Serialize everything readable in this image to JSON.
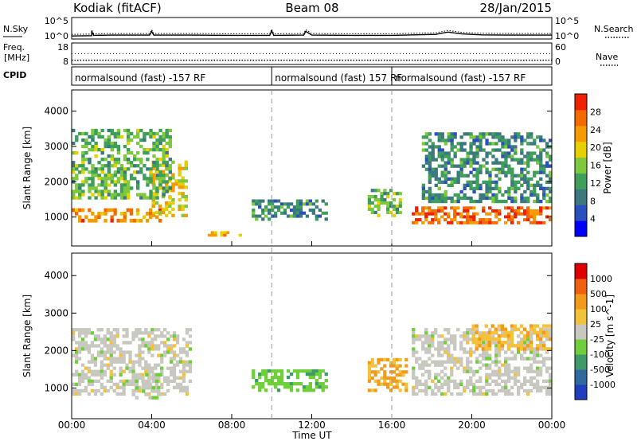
{
  "header": {
    "station": "Kodiak (fitACF)",
    "beam": "Beam 08",
    "date": "28/Jan/2015"
  },
  "noise_panel": {
    "left_label": "N.Sky",
    "right_label": "N.Search",
    "left_ticks": [
      "10^5",
      "10^0"
    ],
    "right_ticks": [
      "10^5",
      "10^0"
    ],
    "left_legend_line": "solid",
    "right_legend_line": "dotted"
  },
  "freq_panel": {
    "left_label_1": "Freq.",
    "left_label_2": "[MHz]",
    "right_label": "Nave",
    "left_ticks": [
      "18",
      "8"
    ],
    "right_ticks": [
      "60",
      "0"
    ],
    "freq_level_mhz": 10,
    "nave_level": 30,
    "right_legend_line": "dotted"
  },
  "cpid_panel": {
    "label": "CPID",
    "segments": [
      {
        "text": "normalsound (fast) -157 RF",
        "start": "00:00",
        "end": "10:00"
      },
      {
        "text": "normalsound (fast) 157 RF",
        "start": "10:00",
        "end": "16:00"
      },
      {
        "text": "normalsound (fast) -157 RF",
        "start": "16:00",
        "end": "24:00"
      }
    ]
  },
  "power_panel": {
    "ylabel": "Slant Range [km]",
    "yticks": [
      "4000",
      "3000",
      "2000",
      "1000"
    ],
    "colorbar": {
      "label": "Power [dB]",
      "ticks": [
        "28",
        "24",
        "20",
        "16",
        "12",
        "8",
        "4"
      ],
      "colors": [
        "#0000ff",
        "#2a4fbf",
        "#3a7a7f",
        "#3e9f5a",
        "#7ec83e",
        "#e6d000",
        "#f59a00",
        "#f56a00",
        "#f02000"
      ]
    }
  },
  "velocity_panel": {
    "ylabel": "Slant Range [km]",
    "yticks": [
      "4000",
      "3000",
      "2000",
      "1000"
    ],
    "colorbar": {
      "label": "Velocity [m s^-1]",
      "ticks": [
        "1000",
        "500",
        "100",
        "25",
        "-25",
        "-100",
        "-500",
        "-1000"
      ],
      "colors": [
        "#1f3fbf",
        "#2e6aa0",
        "#3f9a6a",
        "#6ecf3a",
        "#c8c8c0",
        "#f3c23a",
        "#f39a1a",
        "#f06010",
        "#e00000"
      ]
    }
  },
  "xaxis": {
    "label": "Time UT",
    "ticks": [
      "00:00",
      "04:00",
      "08:00",
      "12:00",
      "16:00",
      "20:00",
      "00:00"
    ]
  },
  "chart_data": [
    {
      "type": "line",
      "title": "Kodiak (fitACF)  Beam 08  28/Jan/2015",
      "xlabel": "",
      "ylabel": "N.Sky",
      "xlim_hours": [
        0,
        24
      ],
      "yscale": "log",
      "ylim": [
        1,
        100000
      ],
      "series": [
        {
          "name": "N.Sky",
          "x": [
            0.0,
            1.0,
            1.0,
            1.1,
            2.0,
            3.9,
            4.0,
            4.1,
            6.0,
            8.0,
            9.9,
            10.0,
            10.1,
            11.6,
            11.7,
            12.0,
            14.0,
            16.0,
            18.2,
            18.8,
            19.5,
            20.5,
            22.0,
            24.0
          ],
          "y": [
            5,
            6,
            60,
            7,
            8,
            8,
            60,
            8,
            8,
            7,
            7,
            80,
            7,
            8,
            60,
            8,
            7,
            7,
            12,
            40,
            15,
            9,
            8,
            8
          ]
        }
      ]
    },
    {
      "type": "scatter",
      "ylabel": "Freq. [MHz]",
      "xlim_hours": [
        0,
        24
      ],
      "ylim": [
        8,
        18
      ],
      "series": [
        {
          "name": "Freq.",
          "x": [
            0,
            4,
            8,
            12,
            16,
            20,
            24
          ],
          "y": [
            10,
            10,
            10,
            10,
            10,
            10,
            10
          ]
        }
      ]
    },
    {
      "type": "heatmap",
      "title": "Power [dB]",
      "ylabel": "Slant Range [km]",
      "xlabel": "Time UT",
      "xlim_hours": [
        0,
        24
      ],
      "ylim_km": [
        180,
        4600
      ],
      "zlim": [
        0,
        32
      ],
      "regions": [
        {
          "feature": "main E/F band",
          "t_start": 0.0,
          "t_end": 4.5,
          "r_start_km": 850,
          "r_end_km": 1250,
          "power_db": 26
        },
        {
          "feature": "rising band",
          "t_start": 4.0,
          "t_end": 5.8,
          "r_start_km": 1000,
          "r_end_km": 2600,
          "power_db": 20
        },
        {
          "feature": "oblique streaks",
          "t_start": 0.0,
          "t_end": 5.0,
          "r_start_km": 1500,
          "r_end_km": 3500,
          "power_db": 14
        },
        {
          "feature": "sporadic patch",
          "t_start": 6.8,
          "t_end": 8.5,
          "r_start_km": 450,
          "r_end_km": 600,
          "power_db": 22
        },
        {
          "feature": "midday patch",
          "t_start": 9.0,
          "t_end": 12.8,
          "r_start_km": 900,
          "r_end_km": 1500,
          "power_db": 10
        },
        {
          "feature": "afternoon patch",
          "t_start": 14.8,
          "t_end": 16.5,
          "r_start_km": 1000,
          "r_end_km": 1800,
          "power_db": 14
        },
        {
          "feature": "evening band",
          "t_start": 17.0,
          "t_end": 24.0,
          "r_start_km": 800,
          "r_end_km": 1300,
          "power_db": 28
        },
        {
          "feature": "evening streaks",
          "t_start": 17.5,
          "t_end": 24.0,
          "r_start_km": 1400,
          "r_end_km": 3400,
          "power_db": 10
        }
      ]
    },
    {
      "type": "heatmap",
      "title": "Velocity [m s^-1]",
      "ylabel": "Slant Range [km]",
      "xlabel": "Time UT",
      "xlim_hours": [
        0,
        24
      ],
      "ylim_km": [
        180,
        4600
      ],
      "zlim": [
        -1000,
        1000
      ],
      "regions": [
        {
          "feature": "ground scatter",
          "t_start": 0.0,
          "t_end": 6.0,
          "r_start_km": 800,
          "r_end_km": 2600,
          "velocity": 0
        },
        {
          "feature": "positive patch",
          "t_start": 3.0,
          "t_end": 4.5,
          "r_start_km": 700,
          "r_end_km": 1400,
          "velocity": 100
        },
        {
          "feature": "midday patch",
          "t_start": 9.0,
          "t_end": 12.8,
          "r_start_km": 900,
          "r_end_km": 1500,
          "velocity": 300
        },
        {
          "feature": "negative patch",
          "t_start": 14.8,
          "t_end": 16.8,
          "r_start_km": 900,
          "r_end_km": 1800,
          "velocity": -400
        },
        {
          "feature": "evening ground scatter",
          "t_start": 17.0,
          "t_end": 24.0,
          "r_start_km": 800,
          "r_end_km": 2600,
          "velocity": 0
        },
        {
          "feature": "evening negative",
          "t_start": 20.0,
          "t_end": 24.0,
          "r_start_km": 2000,
          "r_end_km": 2700,
          "velocity": -300
        }
      ]
    }
  ]
}
